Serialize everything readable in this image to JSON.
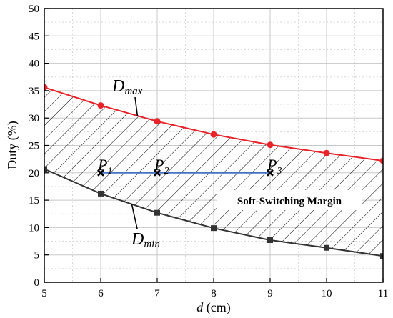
{
  "chart_data": {
    "type": "line",
    "xlabel_var": "d",
    "xlabel_unit": "(cm)",
    "ylabel": "Duty (%)",
    "xlim": [
      5,
      11
    ],
    "ylim": [
      0,
      50
    ],
    "xticks": [
      5,
      6,
      7,
      8,
      9,
      10,
      11
    ],
    "yticks": [
      0,
      5,
      10,
      15,
      20,
      25,
      30,
      35,
      40,
      45,
      50
    ],
    "grid": true,
    "x": [
      5,
      6,
      7,
      8,
      9,
      10,
      11
    ],
    "series": [
      {
        "key": "dmax",
        "label_main": "D",
        "label_sub": "max",
        "color": "#e8232a",
        "marker": "circle",
        "values": [
          35.6,
          32.3,
          29.4,
          27.0,
          25.1,
          23.6,
          22.2
        ]
      },
      {
        "key": "dmin",
        "label_main": "D",
        "label_sub": "min",
        "color": "#333333",
        "marker": "square",
        "values": [
          20.7,
          16.2,
          12.7,
          9.9,
          7.7,
          6.3,
          4.8
        ]
      }
    ],
    "operating_points": {
      "color": "#4472c4",
      "y": 20,
      "points": [
        {
          "main": "P",
          "sub": "1",
          "x": 6
        },
        {
          "main": "P",
          "sub": "2",
          "x": 7
        },
        {
          "main": "P",
          "sub": "3",
          "x": 9
        }
      ]
    },
    "region_label": "Soft-Switching Margin"
  }
}
